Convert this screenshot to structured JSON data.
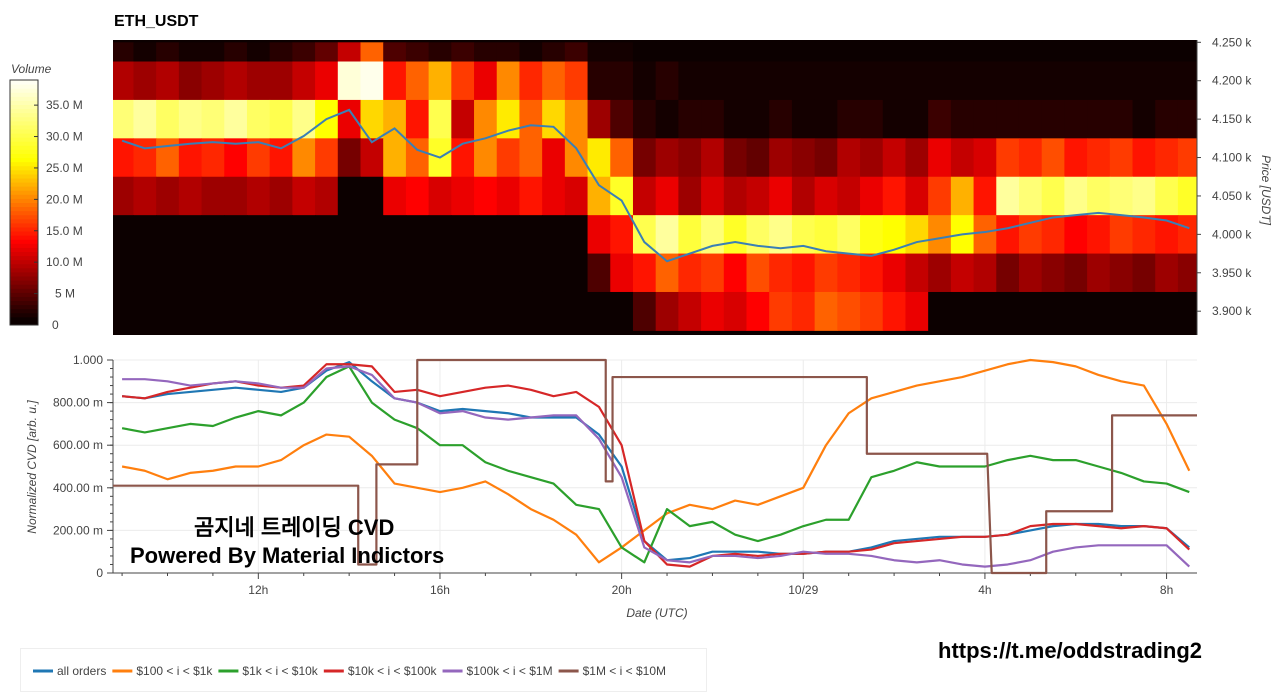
{
  "chart_data": [
    {
      "type": "heatmap",
      "title": "ETH_USDT",
      "ylabel": "Price [USDT]",
      "colorbar_label": "Volume",
      "colorbar_ticks": [
        "0",
        "5 M",
        "10.0 M",
        "15.0 M",
        "20.0 M",
        "25.0 M",
        "30.0 M",
        "35.0 M"
      ],
      "colorbar_tick_values": [
        0,
        5,
        10,
        15,
        20,
        25,
        30,
        35
      ],
      "colorbar_range": [
        0,
        39
      ],
      "y_ticks": [
        "3.900 k",
        "3.950 k",
        "4.000 k",
        "4.050 k",
        "4.100 k",
        "4.150 k",
        "4.200 k",
        "4.250 k"
      ],
      "y_tick_values": [
        3900,
        3950,
        4000,
        4050,
        4100,
        4150,
        4200,
        4250
      ],
      "ylim": [
        3869,
        4253
      ],
      "xlim_hours": [
        8.8,
        32.67
      ],
      "col_start_hour": 8.75,
      "col_step_hours": 0.5,
      "row_edges": [
        4250,
        4225,
        4175,
        4125,
        4075,
        4025,
        3975,
        3925,
        3875
      ],
      "values_M": [
        [
          2,
          1,
          2,
          1,
          1,
          2,
          1,
          2,
          3,
          5,
          10,
          18,
          4,
          3,
          2,
          3,
          2,
          2,
          1,
          2,
          3,
          1,
          1,
          0,
          0,
          0,
          0,
          0,
          0,
          0,
          0,
          0,
          0,
          0,
          0,
          0,
          0,
          0,
          0,
          0,
          0,
          0,
          0,
          0,
          0,
          0,
          0,
          0
        ],
        [
          9,
          8,
          9,
          7,
          8,
          9,
          8,
          8,
          10,
          12,
          37,
          38,
          14,
          18,
          22,
          16,
          12,
          20,
          15,
          18,
          16,
          2,
          2,
          1,
          2,
          1,
          1,
          1,
          1,
          1,
          1,
          1,
          1,
          1,
          1,
          1,
          1,
          1,
          1,
          1,
          1,
          1,
          1,
          1,
          1,
          1,
          1,
          1
        ],
        [
          32,
          34,
          31,
          33,
          32,
          34,
          31,
          30,
          33,
          26,
          12,
          24,
          22,
          14,
          30,
          10,
          20,
          25,
          18,
          24,
          20,
          8,
          4,
          2,
          1,
          2,
          2,
          1,
          1,
          2,
          1,
          1,
          2,
          2,
          1,
          1,
          3,
          2,
          2,
          2,
          2,
          2,
          2,
          2,
          2,
          1,
          2,
          2
        ],
        [
          14,
          15,
          18,
          14,
          15,
          13,
          16,
          14,
          20,
          16,
          6,
          10,
          22,
          18,
          28,
          14,
          20,
          16,
          18,
          12,
          20,
          25,
          18,
          6,
          8,
          7,
          9,
          6,
          5,
          8,
          7,
          6,
          9,
          8,
          10,
          8,
          12,
          10,
          11,
          16,
          15,
          17,
          14,
          15,
          16,
          14,
          15,
          16
        ],
        [
          8,
          9,
          8,
          9,
          8,
          8,
          9,
          8,
          10,
          9,
          0,
          0,
          12,
          13,
          11,
          12,
          13,
          12,
          14,
          12,
          11,
          22,
          28,
          10,
          12,
          8,
          11,
          9,
          10,
          12,
          9,
          11,
          10,
          12,
          14,
          11,
          16,
          22,
          14,
          34,
          32,
          30,
          33,
          31,
          32,
          33,
          30,
          28
        ],
        [
          0,
          0,
          0,
          0,
          0,
          0,
          0,
          0,
          0,
          0,
          0,
          0,
          0,
          0,
          0,
          0,
          0,
          0,
          0,
          0,
          0,
          12,
          14,
          30,
          34,
          29,
          32,
          28,
          31,
          33,
          30,
          29,
          31,
          27,
          26,
          24,
          20,
          26,
          18,
          14,
          16,
          15,
          13,
          14,
          16,
          15,
          14,
          15
        ],
        [
          0,
          0,
          0,
          0,
          0,
          0,
          0,
          0,
          0,
          0,
          0,
          0,
          0,
          0,
          0,
          0,
          0,
          0,
          0,
          0,
          0,
          4,
          12,
          14,
          18,
          15,
          16,
          13,
          17,
          15,
          14,
          16,
          15,
          14,
          12,
          10,
          8,
          10,
          9,
          6,
          8,
          7,
          6,
          8,
          7,
          6,
          8,
          7
        ],
        [
          0,
          0,
          0,
          0,
          0,
          0,
          0,
          0,
          0,
          0,
          0,
          0,
          0,
          0,
          0,
          0,
          0,
          0,
          0,
          0,
          0,
          0,
          0,
          4,
          8,
          10,
          12,
          11,
          13,
          16,
          15,
          18,
          17,
          16,
          14,
          12,
          0,
          0,
          0,
          0,
          0,
          0,
          0,
          0,
          0,
          0,
          0,
          0
        ]
      ],
      "price_line": {
        "color": "#3a7fb5",
        "hours": [
          9,
          9.5,
          10,
          10.5,
          11,
          11.5,
          12,
          12.5,
          13,
          13.5,
          14,
          14.5,
          15,
          15.5,
          16,
          16.5,
          17,
          17.5,
          18,
          18.5,
          19,
          19.5,
          20,
          20.5,
          21,
          21.5,
          22,
          22.5,
          23,
          23.5,
          24,
          24.5,
          25,
          25.5,
          26,
          26.5,
          27,
          27.5,
          28,
          28.5,
          29,
          29.5,
          30,
          30.5,
          31,
          31.5,
          32,
          32.5
        ],
        "values": [
          4122,
          4112,
          4115,
          4118,
          4120,
          4118,
          4120,
          4112,
          4128,
          4150,
          4162,
          4120,
          4138,
          4110,
          4100,
          4118,
          4125,
          4135,
          4142,
          4140,
          4112,
          4064,
          4044,
          3990,
          3965,
          3975,
          3985,
          3990,
          3985,
          3982,
          3985,
          3978,
          3975,
          3972,
          3980,
          3990,
          3995,
          4000,
          4003,
          4008,
          4015,
          4022,
          4025,
          4028,
          4025,
          4022,
          4018,
          4008
        ]
      }
    },
    {
      "type": "line",
      "xlabel": "Date (UTC)",
      "ylabel": "Normalized CVD [arb. u.]",
      "ylim": [
        0,
        1
      ],
      "xlim_hours": [
        8.8,
        32.67
      ],
      "grid": true,
      "legend_position": "bottom",
      "y_ticks": [
        "0",
        "200.00 m",
        "400.00 m",
        "600.00 m",
        "800.00 m",
        "1.000"
      ],
      "y_tick_values": [
        0,
        0.2,
        0.4,
        0.6,
        0.8,
        1.0
      ],
      "x_ticks": [
        "12h",
        "16h",
        "20h",
        "10/29",
        "4h",
        "8h"
      ],
      "x_tick_hours": [
        12,
        16,
        20,
        24,
        28,
        32
      ],
      "hours": [
        9,
        9.5,
        10,
        10.5,
        11,
        11.5,
        12,
        12.5,
        13,
        13.5,
        14,
        14.5,
        15,
        15.5,
        16,
        16.5,
        17,
        17.5,
        18,
        18.5,
        19,
        19.5,
        20,
        20.5,
        21,
        21.5,
        22,
        22.5,
        23,
        23.5,
        24,
        24.5,
        25,
        25.5,
        26,
        26.5,
        27,
        27.5,
        28,
        28.5,
        29,
        29.5,
        30,
        30.5,
        31,
        31.5,
        32,
        32.5
      ],
      "series": [
        {
          "name": "all orders",
          "color": "#1f77b4",
          "values": [
            0.83,
            0.82,
            0.84,
            0.85,
            0.86,
            0.87,
            0.86,
            0.85,
            0.87,
            0.95,
            0.99,
            0.9,
            0.82,
            0.8,
            0.76,
            0.77,
            0.76,
            0.75,
            0.73,
            0.73,
            0.73,
            0.65,
            0.5,
            0.15,
            0.06,
            0.07,
            0.1,
            0.1,
            0.1,
            0.09,
            0.09,
            0.1,
            0.1,
            0.12,
            0.15,
            0.16,
            0.17,
            0.17,
            0.17,
            0.18,
            0.2,
            0.22,
            0.23,
            0.23,
            0.22,
            0.22,
            0.21,
            0.12
          ]
        },
        {
          "name": "$100 < i < $1k",
          "color": "#ff7f0e",
          "values": [
            0.5,
            0.48,
            0.44,
            0.47,
            0.48,
            0.5,
            0.5,
            0.53,
            0.6,
            0.65,
            0.64,
            0.55,
            0.42,
            0.4,
            0.38,
            0.4,
            0.43,
            0.37,
            0.3,
            0.25,
            0.18,
            0.05,
            0.12,
            0.2,
            0.28,
            0.32,
            0.3,
            0.34,
            0.32,
            0.36,
            0.4,
            0.6,
            0.75,
            0.82,
            0.85,
            0.88,
            0.9,
            0.92,
            0.95,
            0.98,
            1.0,
            0.99,
            0.97,
            0.93,
            0.9,
            0.88,
            0.7,
            0.48
          ]
        },
        {
          "name": "$1k < i < $10k",
          "color": "#2ca02c",
          "values": [
            0.68,
            0.66,
            0.68,
            0.7,
            0.69,
            0.73,
            0.76,
            0.74,
            0.8,
            0.92,
            0.97,
            0.8,
            0.72,
            0.68,
            0.6,
            0.6,
            0.52,
            0.48,
            0.45,
            0.42,
            0.32,
            0.3,
            0.12,
            0.05,
            0.3,
            0.22,
            0.24,
            0.18,
            0.15,
            0.18,
            0.22,
            0.25,
            0.25,
            0.45,
            0.48,
            0.52,
            0.5,
            0.5,
            0.5,
            0.53,
            0.55,
            0.53,
            0.53,
            0.5,
            0.47,
            0.43,
            0.42,
            0.38
          ]
        },
        {
          "name": "$10k < i < $100k",
          "color": "#d62728",
          "values": [
            0.83,
            0.82,
            0.85,
            0.87,
            0.89,
            0.9,
            0.88,
            0.87,
            0.88,
            0.98,
            0.98,
            0.97,
            0.85,
            0.86,
            0.83,
            0.85,
            0.87,
            0.88,
            0.86,
            0.83,
            0.85,
            0.78,
            0.6,
            0.15,
            0.04,
            0.03,
            0.08,
            0.09,
            0.08,
            0.09,
            0.09,
            0.1,
            0.1,
            0.11,
            0.14,
            0.15,
            0.16,
            0.17,
            0.17,
            0.18,
            0.22,
            0.23,
            0.23,
            0.22,
            0.21,
            0.22,
            0.21,
            0.11
          ]
        },
        {
          "name": "$100k < i < $1M",
          "color": "#9467bd",
          "values": [
            0.91,
            0.91,
            0.9,
            0.88,
            0.89,
            0.9,
            0.89,
            0.87,
            0.87,
            0.96,
            0.97,
            0.93,
            0.82,
            0.8,
            0.75,
            0.76,
            0.73,
            0.72,
            0.73,
            0.74,
            0.74,
            0.63,
            0.45,
            0.12,
            0.06,
            0.05,
            0.08,
            0.08,
            0.07,
            0.08,
            0.1,
            0.09,
            0.09,
            0.08,
            0.06,
            0.05,
            0.06,
            0.04,
            0.03,
            0.04,
            0.06,
            0.1,
            0.12,
            0.13,
            0.13,
            0.13,
            0.13,
            0.03
          ]
        },
        {
          "name": "$1M < i < $10M",
          "color": "#8c564b",
          "step_points": [
            [
              8.8,
              0.41
            ],
            [
              14.2,
              0.41
            ],
            [
              14.2,
              0.04
            ],
            [
              14.6,
              0.04
            ],
            [
              14.6,
              0.51
            ],
            [
              15.5,
              0.51
            ],
            [
              15.5,
              1.0
            ],
            [
              19.65,
              1.0
            ],
            [
              19.65,
              0.43
            ],
            [
              19.8,
              0.43
            ],
            [
              19.8,
              0.92
            ],
            [
              25.4,
              0.92
            ],
            [
              25.4,
              0.56
            ],
            [
              28.05,
              0.56
            ],
            [
              28.15,
              0.0
            ],
            [
              29.35,
              0.0
            ],
            [
              29.35,
              0.29
            ],
            [
              30.8,
              0.29
            ],
            [
              30.8,
              0.74
            ],
            [
              32.67,
              0.74
            ]
          ]
        }
      ]
    }
  ],
  "watermark": {
    "line1": "곰지네 트레이딩 CVD",
    "line2": "Powered By Material Indictors"
  },
  "footer_link": "https://t.me/oddstrading2"
}
